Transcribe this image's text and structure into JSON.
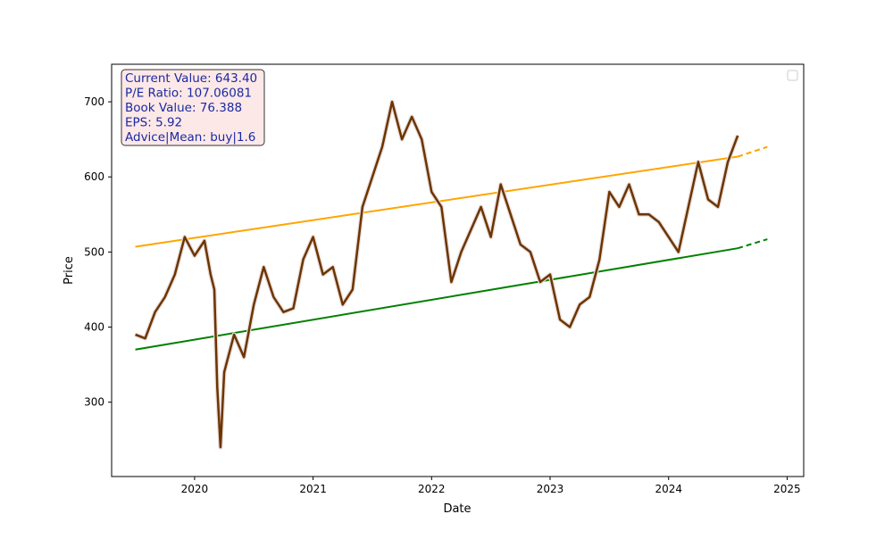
{
  "chart_data": {
    "type": "line",
    "xlabel": "Date",
    "ylabel": "Price",
    "xlim": [
      2019.3,
      2025.14
    ],
    "ylim": [
      201,
      750
    ],
    "x_ticks": [
      "2020",
      "2021",
      "2022",
      "2023",
      "2024",
      "2025"
    ],
    "y_ticks": [
      300,
      400,
      500,
      600,
      700
    ],
    "grid": false,
    "legend": {
      "placement": "top-right",
      "entries": []
    },
    "info_box": {
      "lines": [
        "Current Value: 643.40",
        "P/E Ratio: 107.06081",
        "Book Value: 76.388",
        "EPS: 5.92",
        "Advice|Mean: buy|1.6"
      ],
      "text_color": "#1a2aa0",
      "background": "#fde8e8"
    },
    "series": [
      {
        "color": "#6b3500",
        "x": [
          "2019-07",
          "2019-08",
          "2019-09",
          "2019-10",
          "2019-11",
          "2019-12",
          "2020-01",
          "2020-02",
          "2020-02-20",
          "2020-03-01",
          "2020-03-10",
          "2020-03-20",
          "2020-04",
          "2020-05",
          "2020-06",
          "2020-07",
          "2020-08",
          "2020-09",
          "2020-10",
          "2020-11",
          "2020-12",
          "2021-01",
          "2021-02",
          "2021-03",
          "2021-04",
          "2021-05",
          "2021-06",
          "2021-07",
          "2021-08",
          "2021-09",
          "2021-10",
          "2021-11",
          "2021-12",
          "2022-01",
          "2022-02",
          "2022-03",
          "2022-04",
          "2022-05",
          "2022-06",
          "2022-07",
          "2022-08",
          "2022-09",
          "2022-10",
          "2022-11",
          "2022-12",
          "2023-01",
          "2023-02",
          "2023-03",
          "2023-04",
          "2023-05",
          "2023-06",
          "2023-07",
          "2023-08",
          "2023-09",
          "2023-10",
          "2023-11",
          "2023-12",
          "2024-01",
          "2024-02",
          "2024-03",
          "2024-04",
          "2024-05",
          "2024-06",
          "2024-07",
          "2024-08"
        ],
        "values": [
          390,
          385,
          420,
          440,
          470,
          520,
          495,
          515,
          470,
          450,
          320,
          240,
          340,
          390,
          360,
          430,
          480,
          440,
          420,
          425,
          490,
          520,
          470,
          480,
          430,
          450,
          560,
          600,
          640,
          700,
          650,
          680,
          650,
          580,
          560,
          460,
          500,
          530,
          560,
          520,
          590,
          550,
          510,
          500,
          460,
          470,
          410,
          400,
          430,
          440,
          490,
          580,
          560,
          590,
          550,
          550,
          540,
          520,
          500,
          560,
          620,
          570,
          560,
          620,
          655
        ]
      },
      {
        "color": "#ffa500",
        "x": [
          "2019-07",
          "2024-08"
        ],
        "values": [
          507,
          627
        ],
        "forecast_x": [
          "2024-08",
          "2024-11"
        ],
        "forecast_values": [
          627,
          640
        ]
      },
      {
        "color": "#008000",
        "x": [
          "2019-07",
          "2024-08"
        ],
        "values": [
          370,
          505
        ],
        "forecast_x": [
          "2024-08",
          "2024-11"
        ],
        "forecast_values": [
          505,
          517
        ]
      }
    ]
  }
}
